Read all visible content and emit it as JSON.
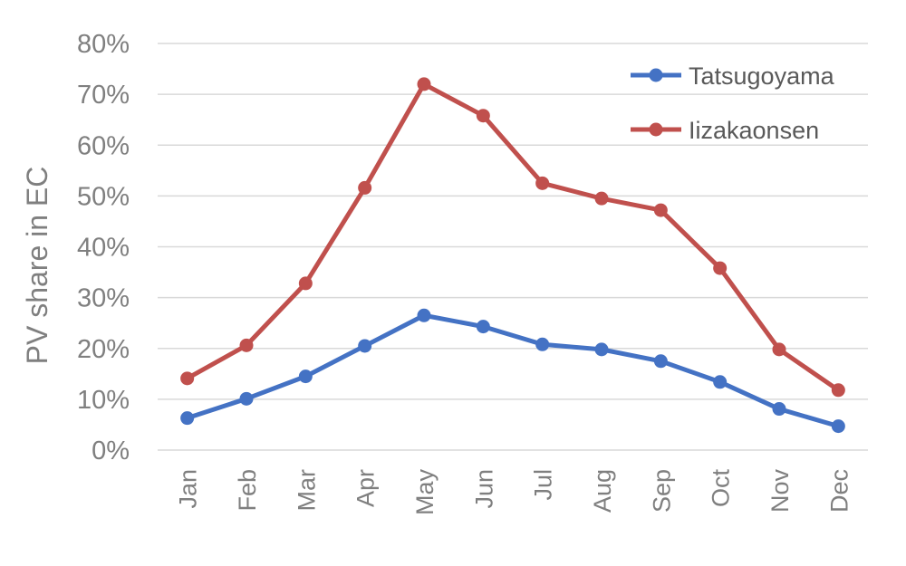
{
  "chart_data": {
    "type": "line",
    "title": "",
    "xlabel": "",
    "ylabel": "PV share in EC",
    "categories": [
      "Jan",
      "Feb",
      "Mar",
      "Apr",
      "May",
      "Jun",
      "Jul",
      "Aug",
      "Sep",
      "Oct",
      "Nov",
      "Dec"
    ],
    "ylim": [
      0,
      80
    ],
    "yticks": [
      0,
      10,
      20,
      30,
      40,
      50,
      60,
      70,
      80
    ],
    "ytick_labels": [
      "0%",
      "10%",
      "20%",
      "30%",
      "40%",
      "50%",
      "60%",
      "70%",
      "80%"
    ],
    "grid": true,
    "legend_position": "top-right",
    "series": [
      {
        "name": "Tatsugoyama",
        "color": "#4472c4",
        "values": [
          6.3,
          10.1,
          14.5,
          20.5,
          26.5,
          24.3,
          20.8,
          19.8,
          17.5,
          13.4,
          8.1,
          4.7
        ]
      },
      {
        "name": "Iizakaonsen",
        "color": "#c0504d",
        "values": [
          14.1,
          20.6,
          32.8,
          51.6,
          72.0,
          65.8,
          52.5,
          49.5,
          47.2,
          35.8,
          19.8,
          11.8
        ]
      }
    ]
  }
}
